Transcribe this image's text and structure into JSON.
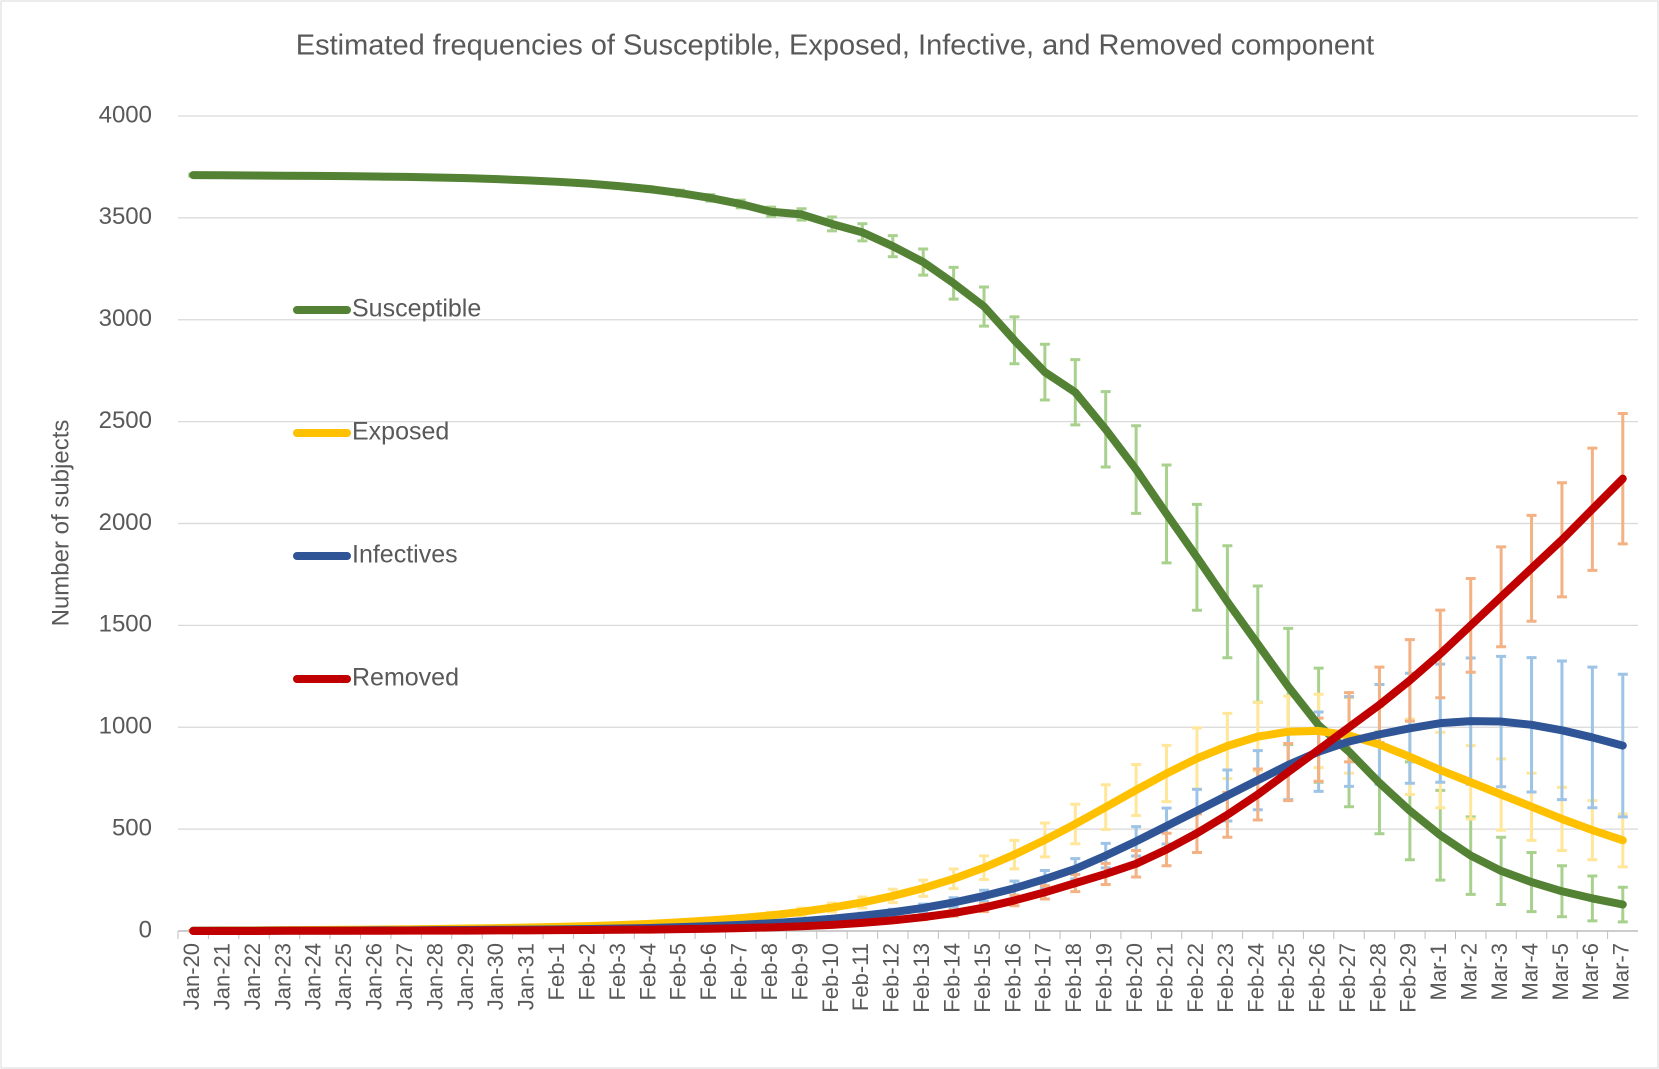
{
  "chart_data": {
    "type": "line",
    "title": "Estimated frequencies of Susceptible, Exposed, Infective, and Removed component",
    "y_label": "Number of subjects",
    "categories": [
      "Jan-20",
      "Jan-21",
      "Jan-22",
      "Jan-23",
      "Jan-24",
      "Jan-25",
      "Jan-26",
      "Jan-27",
      "Jan-28",
      "Jan-29",
      "Jan-30",
      "Jan-31",
      "Feb-1",
      "Feb-2",
      "Feb-3",
      "Feb-4",
      "Feb-5",
      "Feb-6",
      "Feb-7",
      "Feb-8",
      "Feb-9",
      "Feb-10",
      "Feb-11",
      "Feb-12",
      "Feb-13",
      "Feb-14",
      "Feb-15",
      "Feb-16",
      "Feb-17",
      "Feb-18",
      "Feb-19",
      "Feb-20",
      "Feb-21",
      "Feb-22",
      "Feb-23",
      "Feb-24",
      "Feb-25",
      "Feb-26",
      "Feb-27",
      "Feb-28",
      "Feb-29",
      "Mar-1",
      "Mar-2",
      "Mar-3",
      "Mar-4",
      "Mar-5",
      "Mar-6",
      "Mar-7"
    ],
    "ylim": [
      0,
      4000
    ],
    "yticks": [
      0,
      500,
      1000,
      1500,
      2000,
      2500,
      3000,
      3500,
      4000
    ],
    "grid": true,
    "legend": "left",
    "series": [
      {
        "name": "Susceptible",
        "color": "#548235",
        "error_color": "#a9d18e",
        "values": [
          3710,
          3709,
          3708,
          3707,
          3706,
          3705,
          3703,
          3701,
          3698,
          3695,
          3690,
          3684,
          3677,
          3668,
          3656,
          3641,
          3622,
          3598,
          3568,
          3530,
          3517,
          3470,
          3429,
          3361,
          3283,
          3179,
          3065,
          2899,
          2743,
          2644,
          2462,
          2265,
          2047,
          1834,
          1616,
          1408,
          1200,
          1010,
          880,
          727,
          590,
          470,
          370,
          295,
          240,
          195,
          160,
          130
        ],
        "errors": [
          5,
          5,
          5,
          5,
          5,
          5,
          5,
          5,
          5,
          6,
          6,
          7,
          8,
          9,
          10,
          12,
          14,
          16,
          19,
          23,
          28,
          34,
          42,
          52,
          64,
          78,
          96,
          115,
          137,
          160,
          185,
          215,
          240,
          260,
          275,
          285,
          285,
          280,
          270,
          250,
          240,
          220,
          190,
          165,
          145,
          125,
          110,
          85
        ]
      },
      {
        "name": "Exposed",
        "color": "#ffc000",
        "error_color": "#ffe699",
        "values": [
          2,
          3,
          3,
          4,
          5,
          6,
          7,
          8,
          10,
          12,
          14,
          17,
          20,
          24,
          29,
          35,
          43,
          52,
          63,
          77,
          94,
          115,
          140,
          172,
          210,
          256,
          311,
          375,
          447,
          525,
          608,
          692,
          773,
          847,
          908,
          954,
          978,
          982,
          960,
          915,
          855,
          790,
          730,
          670,
          610,
          550,
          495,
          445
        ],
        "errors": [
          1,
          1,
          1,
          1,
          1,
          1,
          2,
          2,
          2,
          2,
          3,
          3,
          4,
          5,
          6,
          7,
          8,
          10,
          12,
          15,
          18,
          22,
          27,
          33,
          40,
          48,
          58,
          70,
          83,
          97,
          110,
          125,
          138,
          150,
          160,
          168,
          175,
          180,
          185,
          185,
          185,
          185,
          180,
          175,
          165,
          155,
          145,
          130
        ]
      },
      {
        "name": "Infectives",
        "color": "#2f5597",
        "error_color": "#9dc3e6",
        "values": [
          1,
          1,
          1,
          2,
          2,
          2,
          3,
          3,
          4,
          5,
          6,
          7,
          8,
          10,
          12,
          15,
          19,
          24,
          30,
          38,
          48,
          60,
          75,
          92,
          113,
          140,
          172,
          210,
          255,
          305,
          370,
          440,
          515,
          590,
          665,
          740,
          815,
          880,
          930,
          965,
          995,
          1020,
          1030,
          1028,
          1012,
          985,
          950,
          910
        ],
        "errors": [
          0,
          0,
          0,
          0,
          0,
          0,
          1,
          1,
          1,
          1,
          1,
          1,
          2,
          2,
          2,
          3,
          3,
          4,
          5,
          6,
          8,
          10,
          12,
          15,
          19,
          23,
          28,
          35,
          42,
          50,
          60,
          72,
          88,
          105,
          125,
          145,
          170,
          195,
          220,
          245,
          270,
          290,
          310,
          320,
          330,
          340,
          345,
          350
        ]
      },
      {
        "name": "Removed",
        "color": "#c00000",
        "error_color": "#f4b183",
        "values": [
          0,
          0,
          0,
          1,
          1,
          1,
          1,
          2,
          2,
          2,
          3,
          3,
          4,
          5,
          6,
          7,
          9,
          11,
          14,
          18,
          23,
          30,
          40,
          52,
          68,
          88,
          115,
          150,
          190,
          235,
          280,
          330,
          400,
          480,
          570,
          670,
          780,
          890,
          1000,
          1110,
          1230,
          1360,
          1500,
          1640,
          1780,
          1920,
          2070,
          2220
        ],
        "errors": [
          0,
          0,
          0,
          0,
          0,
          0,
          0,
          0,
          0,
          0,
          1,
          1,
          1,
          1,
          1,
          1,
          2,
          2,
          3,
          3,
          4,
          5,
          7,
          9,
          12,
          15,
          20,
          26,
          33,
          42,
          52,
          65,
          80,
          95,
          110,
          125,
          140,
          155,
          170,
          185,
          200,
          215,
          230,
          245,
          260,
          280,
          300,
          320
        ]
      }
    ]
  }
}
